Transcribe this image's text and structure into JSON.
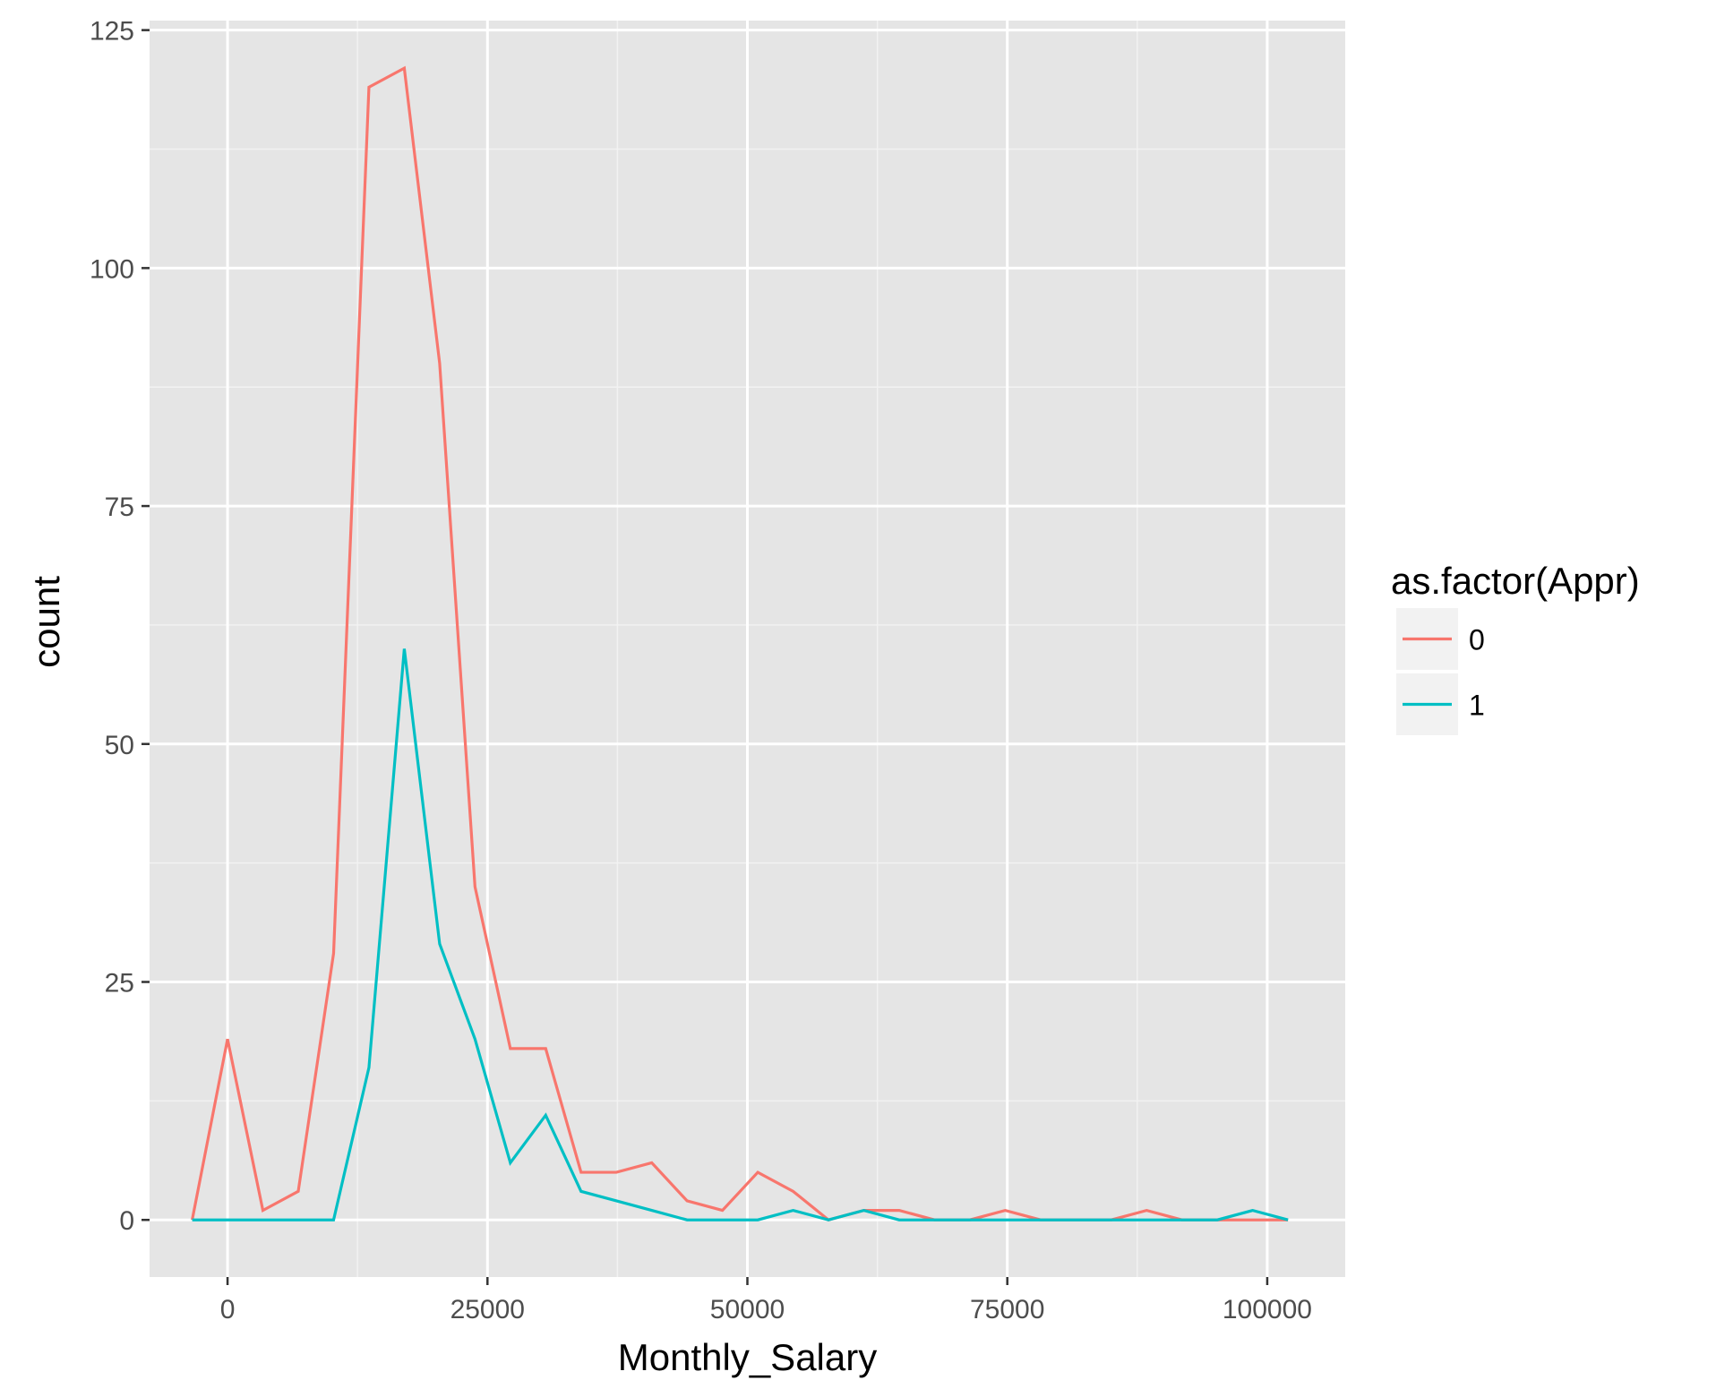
{
  "chart_data": {
    "type": "line",
    "title": "",
    "xlabel": "Monthly_Salary",
    "ylabel": "count",
    "xlim": [
      -7500,
      107500
    ],
    "ylim": [
      -6,
      126
    ],
    "x_ticks": [
      0,
      25000,
      50000,
      75000,
      100000
    ],
    "x_tick_labels": [
      "0",
      "25000",
      "50000",
      "75000",
      "100000"
    ],
    "y_ticks": [
      0,
      25,
      50,
      75,
      100,
      125
    ],
    "y_tick_labels": [
      "0",
      "25",
      "50",
      "75",
      "100",
      "125"
    ],
    "grid": true,
    "legend": {
      "title": "as.factor(Appr)",
      "placement": "right"
    },
    "x": [
      -3400,
      0,
      3400,
      6800,
      10200,
      13600,
      17000,
      20400,
      23800,
      27200,
      30600,
      34000,
      37400,
      40800,
      44200,
      47600,
      51000,
      54400,
      57800,
      61200,
      64600,
      68000,
      71400,
      74800,
      78200,
      81600,
      85000,
      88400,
      91800,
      95200,
      98600,
      102000
    ],
    "series": [
      {
        "name": "0",
        "color": "#F8766D",
        "values": [
          0,
          19,
          1,
          3,
          28,
          119,
          121,
          90,
          35,
          18,
          18,
          5,
          5,
          6,
          2,
          1,
          5,
          3,
          0,
          1,
          1,
          0,
          0,
          1,
          0,
          0,
          0,
          1,
          0,
          0,
          0,
          0
        ]
      },
      {
        "name": "1",
        "color": "#00BFC4",
        "values": [
          0,
          0,
          0,
          0,
          0,
          16,
          60,
          29,
          19,
          6,
          11,
          3,
          2,
          1,
          0,
          0,
          0,
          1,
          0,
          1,
          0,
          0,
          0,
          0,
          0,
          0,
          0,
          0,
          0,
          0,
          1,
          0
        ]
      }
    ]
  }
}
